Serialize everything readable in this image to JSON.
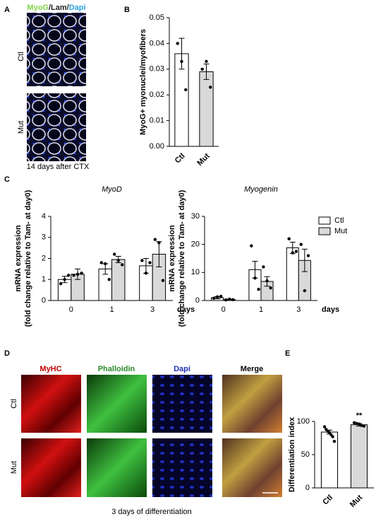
{
  "figure": {
    "panel_labels": [
      "A",
      "B",
      "C",
      "D",
      "E"
    ],
    "a": {
      "stain": [
        "MyoG",
        "/Lam/",
        "Dapi"
      ],
      "rows": [
        "Ctl",
        "Mut"
      ],
      "caption": "14 days after CTX"
    },
    "d": {
      "columns": [
        "MyHC",
        "Phalloidin",
        "Dapi",
        "Merge"
      ],
      "rows": [
        "Ctl",
        "Mut"
      ],
      "caption": "3 days of differentiation"
    }
  },
  "chart_data": [
    {
      "type": "bar",
      "ylabel": "MyoG+ myonuclei/myofibers",
      "categories": [
        "Ctl",
        "Mut"
      ],
      "values": [
        0.036,
        0.029
      ],
      "errors": [
        0.006,
        0.003
      ],
      "points": [
        [
          0.04,
          0.033,
          0.022
        ],
        [
          0.03,
          0.033,
          0.023
        ]
      ],
      "colors": [
        "#ffffff",
        "#d9d9d9"
      ],
      "ylim": [
        0,
        0.05
      ],
      "yticks": [
        {
          "value": 0,
          "label": "0.00"
        },
        {
          "value": 0.01,
          "label": "0.01"
        },
        {
          "value": 0.02,
          "label": "0.02"
        },
        {
          "value": 0.03,
          "label": "0.03"
        },
        {
          "value": 0.04,
          "label": "0.04"
        },
        0.05
      ]
    },
    {
      "type": "bar",
      "title": "MyoD",
      "ylabel": [
        "mRNA expression",
        "(fold change relative to Tam- at day0)"
      ],
      "xlabel": "days",
      "categories": [
        "0",
        "1",
        "3"
      ],
      "series": [
        {
          "name": "Ctl",
          "color": "#ffffff",
          "values": [
            1.0,
            1.5,
            1.65
          ],
          "errors": [
            0.15,
            0.25,
            0.35
          ],
          "points": [
            [
              0.8,
              1.0,
              1.2
            ],
            [
              1.8,
              1.75,
              1.0
            ],
            [
              1.9,
              1.3,
              1.8
            ]
          ]
        },
        {
          "name": "Mut",
          "color": "#d9d9d9",
          "values": [
            1.25,
            1.95,
            2.2
          ],
          "errors": [
            0.25,
            0.15,
            0.6
          ],
          "points": [
            [
              1.2,
              1.25,
              1.3
            ],
            [
              2.2,
              1.9,
              1.7
            ],
            [
              2.9,
              2.75,
              0.95
            ]
          ]
        }
      ],
      "ylim": [
        0,
        4
      ],
      "yticks": [
        0,
        1,
        2,
        3,
        4
      ]
    },
    {
      "type": "bar",
      "title": "Myogenin",
      "ylabel": [
        "mRNA expression",
        "(fold change relative to Tam- at day0)"
      ],
      "xlabel": "days",
      "categories": [
        "0",
        "1",
        "3"
      ],
      "series": [
        {
          "name": "Ctl",
          "color": "#ffffff",
          "values": [
            1.0,
            11,
            18.8
          ],
          "errors": [
            0.4,
            3,
            2
          ],
          "points": [
            [
              0.8,
              1.3,
              1.5
            ],
            [
              19.5,
              8,
              4
            ],
            [
              22,
              17,
              17.5
            ]
          ]
        },
        {
          "name": "Mut",
          "color": "#d9d9d9",
          "values": [
            0.3,
            6.8,
            14.3
          ],
          "errors": [
            0.2,
            1.7,
            4
          ],
          "points": [
            [
              0.2,
              0.5,
              0.3
            ],
            [
              12,
              7,
              4.5
            ],
            [
              20,
              3.5,
              16
            ]
          ]
        }
      ],
      "ylim": [
        0,
        30
      ],
      "yticks": [
        0,
        10,
        20,
        30
      ],
      "legend": "top-right"
    },
    {
      "type": "bar",
      "ylabel": "Differentiation index",
      "annotation": "**",
      "categories": [
        "Ctl",
        "Mut"
      ],
      "values": [
        84,
        95
      ],
      "errors": [
        3,
        2
      ],
      "points": [
        [
          92,
          88,
          85,
          83,
          80,
          77,
          70
        ],
        [
          98,
          97,
          96,
          94,
          93
        ]
      ],
      "colors": [
        "#ffffff",
        "#d9d9d9"
      ],
      "ylim": [
        0,
        100
      ],
      "yticks": [
        0,
        50,
        100
      ]
    }
  ]
}
